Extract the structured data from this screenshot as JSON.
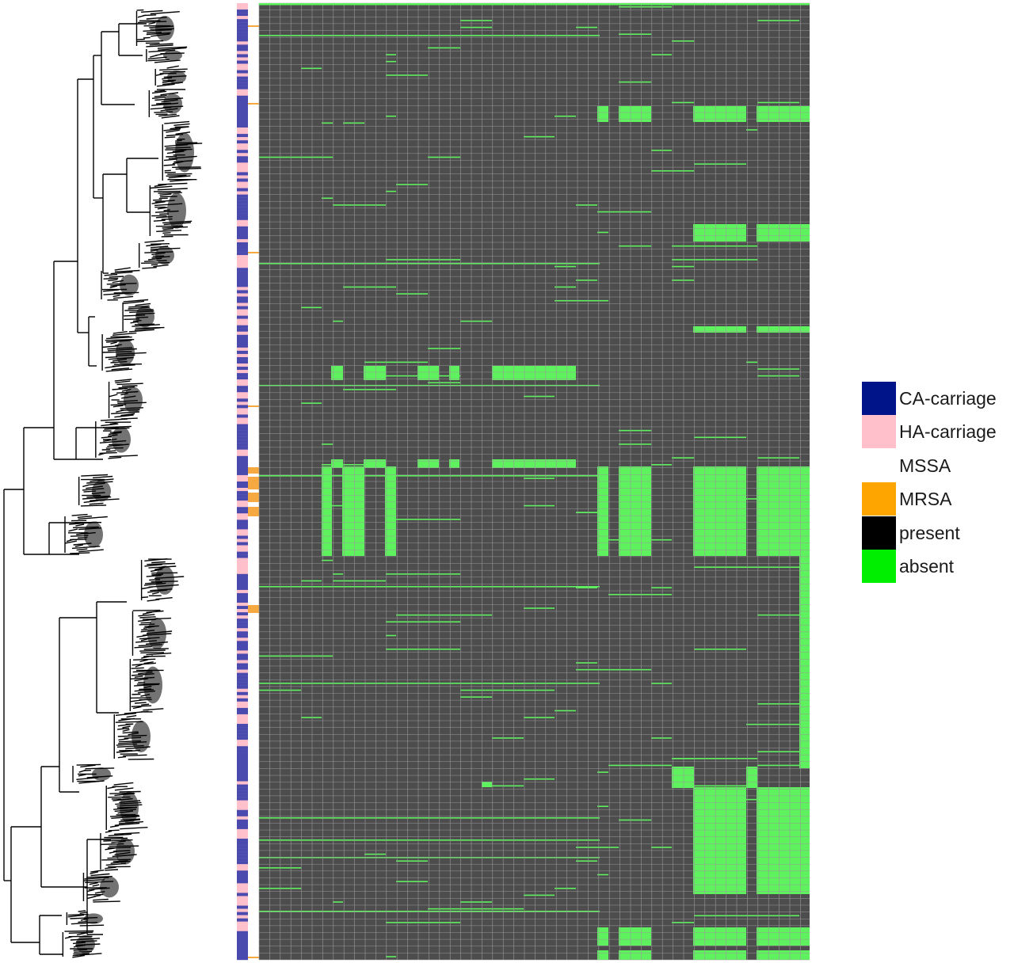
{
  "legend": [
    {
      "key": "ca",
      "label": "CA-carriage",
      "color": "#001489"
    },
    {
      "key": "ha",
      "label": "HA-carriage",
      "color": "#ffc0cb"
    },
    {
      "key": "mssa",
      "label": "MSSA",
      "color": "#ffffff"
    },
    {
      "key": "mrsa",
      "label": "MRSA",
      "color": "#ffa500"
    },
    {
      "key": "present",
      "label": "present",
      "color": "#000000"
    },
    {
      "key": "absent",
      "label": "absent",
      "color": "#00ee00"
    }
  ],
  "colors": {
    "tree": "#000000",
    "heatmap_cell": "#4d4d4d",
    "heatmap_grid": "#9a9a9a",
    "heatmap_absent": "#5ef25e",
    "strip_ca": "#4a4aae",
    "strip_ha": "#ffc0cb",
    "strip_mrsa": "#f7a941"
  },
  "strips": {
    "carriage_order": [
      "CA-carriage",
      "HA-carriage"
    ],
    "resistance_order": [
      "MSSA",
      "MRSA"
    ]
  }
}
